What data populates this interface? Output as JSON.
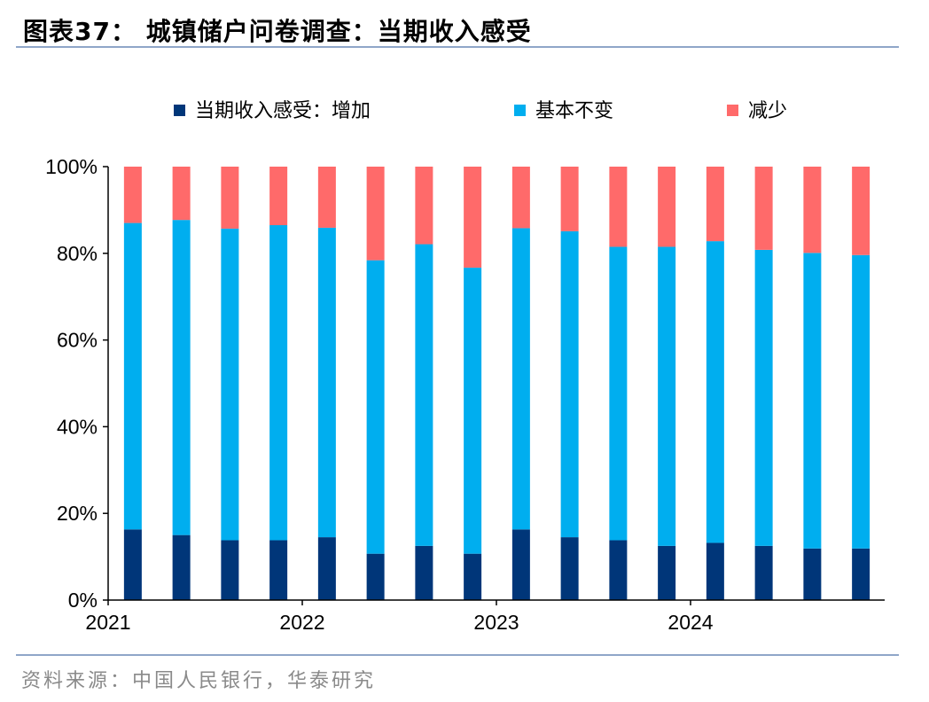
{
  "title": "图表37：  城镇储户问卷调查：当期收入感受",
  "source": "资料来源：中国人民银行，华泰研究",
  "chart_data": {
    "type": "bar",
    "stacked": true,
    "title": "图表37：  城镇储户问卷调查：当期收入感受",
    "xlabel": "",
    "ylabel": "",
    "ylim": [
      0,
      100
    ],
    "y_ticks": [
      "0%",
      "20%",
      "40%",
      "60%",
      "80%",
      "100%"
    ],
    "x_ticks": [
      {
        "label": "2021",
        "index": 0
      },
      {
        "label": "2022",
        "index": 4
      },
      {
        "label": "2023",
        "index": 8
      },
      {
        "label": "2024",
        "index": 12
      }
    ],
    "legend_position": "top",
    "grid": false,
    "series": [
      {
        "name": "当期收入感受：增加",
        "color": "#003679",
        "values": [
          16.3,
          15.0,
          13.8,
          13.8,
          14.5,
          10.7,
          12.5,
          10.7,
          16.3,
          14.5,
          13.8,
          12.5,
          13.2,
          12.5,
          11.9,
          11.9
        ]
      },
      {
        "name": "基本不变",
        "color": "#00aeef",
        "values": [
          70.7,
          72.7,
          71.9,
          72.7,
          71.4,
          67.7,
          69.6,
          66.0,
          69.5,
          70.6,
          67.7,
          69.0,
          69.6,
          68.3,
          68.2,
          67.7
        ]
      },
      {
        "name": "减少",
        "color": "#ff6a6a",
        "values": [
          13.0,
          12.3,
          14.3,
          13.5,
          14.1,
          21.6,
          17.9,
          23.3,
          14.2,
          14.9,
          18.5,
          18.5,
          17.2,
          19.2,
          19.9,
          20.4
        ]
      }
    ]
  }
}
